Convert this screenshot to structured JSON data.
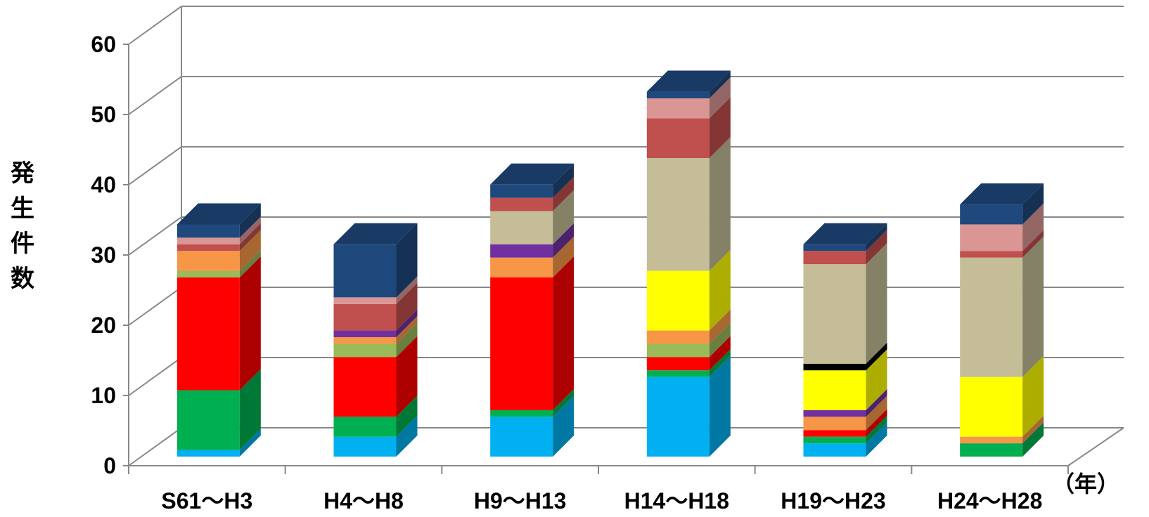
{
  "chart_data": {
    "type": "bar",
    "stacked": true,
    "three_d": true,
    "title": "",
    "ylabel": "発生件数",
    "xlabel": "",
    "x_unit_label": "（年）",
    "categories": [
      "S61～H3",
      "H4～H8",
      "H9～H13",
      "H14～H18",
      "H19～H23",
      "H24～H28"
    ],
    "ylim": [
      0,
      60
    ],
    "yticks": [
      "0",
      "10",
      "20",
      "30",
      "40",
      "50",
      "60"
    ],
    "grid": true,
    "legend": "none",
    "series": [
      {
        "color": "#00b0f0",
        "values": [
          1,
          3,
          6,
          12,
          2,
          0
        ]
      },
      {
        "color": "#00b050",
        "values": [
          9,
          3,
          1,
          1,
          1,
          2
        ]
      },
      {
        "color": "#ff0000",
        "values": [
          17,
          9,
          20,
          2,
          1,
          0
        ]
      },
      {
        "color": "#9bbb59",
        "values": [
          1,
          2,
          0,
          2,
          0,
          0
        ]
      },
      {
        "color": "#f79646",
        "values": [
          3,
          1,
          3,
          2,
          2,
          1
        ]
      },
      {
        "color": "#7030a0",
        "values": [
          0,
          1,
          2,
          0,
          1,
          0
        ]
      },
      {
        "color": "#ffff00",
        "values": [
          0,
          0,
          0,
          9,
          6,
          9
        ]
      },
      {
        "color": "#000000",
        "values": [
          0,
          0,
          0,
          0,
          1,
          0
        ]
      },
      {
        "color": "#c4bd97",
        "values": [
          0,
          0,
          5,
          17,
          15,
          18
        ]
      },
      {
        "color": "#c0504d",
        "values": [
          1,
          4,
          2,
          6,
          2,
          1
        ]
      },
      {
        "color": "#da9694",
        "values": [
          1,
          1,
          0,
          3,
          0,
          4
        ]
      },
      {
        "color": "#1f497d",
        "values": [
          2,
          8,
          2,
          1,
          1,
          3
        ]
      }
    ]
  }
}
